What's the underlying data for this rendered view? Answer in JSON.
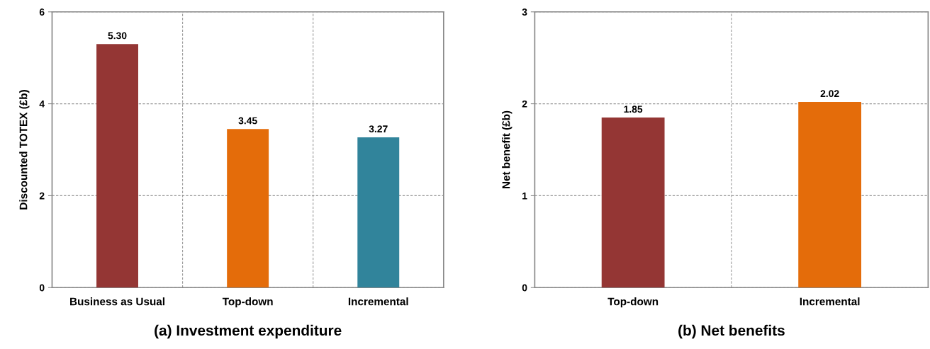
{
  "chart_data": [
    {
      "type": "bar",
      "title": "(a) Investment expenditure",
      "ylabel": "Discounted TOTEX (£b)",
      "categories": [
        "Business as Usual",
        "Top-down",
        "Incremental"
      ],
      "values": [
        5.3,
        3.45,
        3.27
      ],
      "value_labels": [
        "5.30",
        "3.45",
        "3.27"
      ],
      "colors": [
        "#943634",
        "#e46c0a",
        "#31849b"
      ],
      "ylim": [
        0,
        6
      ],
      "yticks": [
        0,
        2,
        4,
        6
      ],
      "grid": true
    },
    {
      "type": "bar",
      "title": "(b) Net benefits",
      "ylabel": "Net benefit (£b)",
      "categories": [
        "Top-down",
        "Incremental"
      ],
      "values": [
        1.85,
        2.02
      ],
      "value_labels": [
        "1.85",
        "2.02"
      ],
      "colors": [
        "#943634",
        "#e46c0a"
      ],
      "ylim": [
        0,
        3
      ],
      "yticks": [
        0,
        1,
        2,
        3
      ],
      "grid": true
    }
  ]
}
